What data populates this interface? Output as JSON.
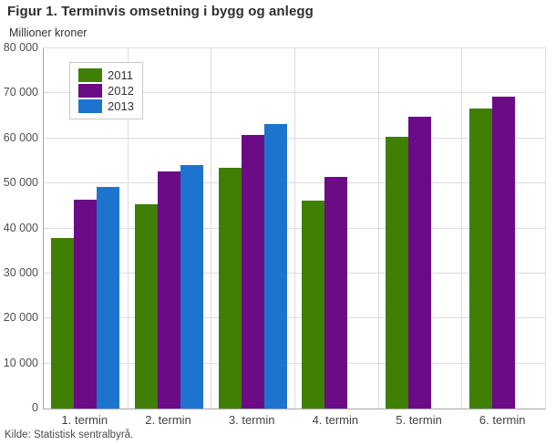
{
  "figure": {
    "title": "Figur 1. Terminvis omsetning i bygg og anlegg",
    "unit_label": "Millioner kroner",
    "source": "Kilde: Statistisk sentralbyrå."
  },
  "colors": {
    "series_2011": "#3e7f04",
    "series_2012": "#6b0b86",
    "series_2013": "#1d74cf",
    "gridline": "#dcdcdc",
    "axis": "#a6a6a6",
    "title_text": "#2e2e2e",
    "tick_text": "#4d4d4d"
  },
  "chart_data": {
    "type": "bar",
    "title": "Figur 1. Terminvis omsetning i bygg og anlegg",
    "ylabel": "Millioner kroner",
    "xlabel": "",
    "categories": [
      "1. termin",
      "2. termin",
      "3. termin",
      "4. termin",
      "5. termin",
      "6. termin"
    ],
    "series": [
      {
        "name": "2011",
        "color": "#3e7f04",
        "values": [
          37800,
          45300,
          53400,
          46200,
          60300,
          66600
        ]
      },
      {
        "name": "2012",
        "color": "#6b0b86",
        "values": [
          46300,
          52700,
          60700,
          51400,
          64900,
          69200
        ]
      },
      {
        "name": "2013",
        "color": "#1d74cf",
        "values": [
          49300,
          54100,
          63100,
          null,
          null,
          null
        ]
      }
    ],
    "ylim": [
      0,
      80000
    ],
    "ytick_step": 10000,
    "ytick_labels": [
      "0",
      "10 000",
      "20 000",
      "30 000",
      "40 000",
      "50 000",
      "60 000",
      "70 000",
      "80 000"
    ],
    "grid": true,
    "legend_position": "top-left"
  }
}
